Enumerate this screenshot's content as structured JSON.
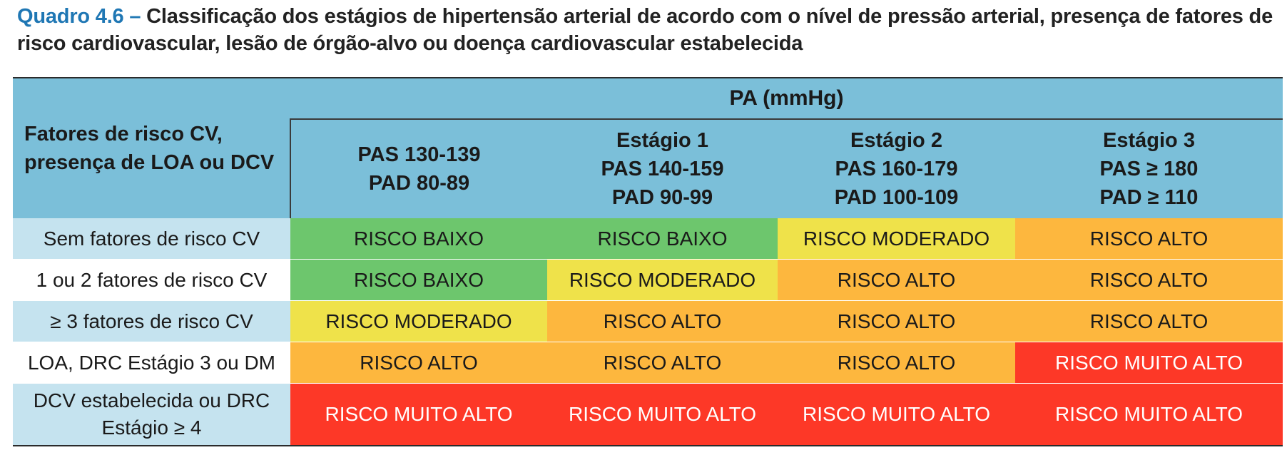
{
  "caption": {
    "label": "Quadro 4.6 –",
    "text": " Classificação dos estágios de hipertensão arterial de acordo com o nível de pressão arterial, presença de fatores de risco cardiovascular, lesão de órgão-alvo ou doença cardiovascular estabelecida"
  },
  "header": {
    "row_label_lines": [
      "Fatores de risco CV,",
      "presença de LOA ou DCV"
    ],
    "pa_title": "PA (mmHg)",
    "columns": [
      {
        "lines": [
          "PAS 130-139",
          "PAD 80-89"
        ]
      },
      {
        "lines": [
          "Estágio 1",
          "PAS 140-159",
          "PAD 90-99"
        ]
      },
      {
        "lines": [
          "Estágio 2",
          "PAS 160-179",
          "PAD 100-109"
        ]
      },
      {
        "lines": [
          "Estágio 3",
          "PAS ≥ 180",
          "PAD ≥ 110"
        ]
      }
    ]
  },
  "rows": [
    {
      "label_lines": [
        "Sem fatores de risco CV"
      ],
      "cells": [
        "RISCO BAIXO",
        "RISCO BAIXO",
        "RISCO MODERADO",
        "RISCO ALTO"
      ]
    },
    {
      "label_lines": [
        "1 ou 2 fatores de risco CV"
      ],
      "cells": [
        "RISCO BAIXO",
        "RISCO MODERADO",
        "RISCO ALTO",
        "RISCO ALTO"
      ]
    },
    {
      "label_lines": [
        "≥ 3 fatores de risco CV"
      ],
      "cells": [
        "RISCO MODERADO",
        "RISCO ALTO",
        "RISCO ALTO",
        "RISCO ALTO"
      ]
    },
    {
      "label_lines": [
        "LOA, DRC Estágio 3 ou DM"
      ],
      "cells": [
        "RISCO ALTO",
        "RISCO ALTO",
        "RISCO ALTO",
        "RISCO MUITO ALTO"
      ]
    },
    {
      "label_lines": [
        "DCV estabelecida ou DRC",
        "Estágio ≥ 4"
      ],
      "cells": [
        "RISCO MUITO ALTO",
        "RISCO MUITO ALTO",
        "RISCO MUITO ALTO",
        "RISCO MUITO ALTO"
      ]
    }
  ],
  "colors": {
    "header_blue": "#7bbfd9",
    "label_shade": "#c5e3ef",
    "risco_baixo": "#6dc66d",
    "risco_moderado": "#efe24a",
    "risco_alto": "#fdb73e",
    "risco_muito_alto": "#fd3827",
    "caption_label": "#1f77b4"
  }
}
